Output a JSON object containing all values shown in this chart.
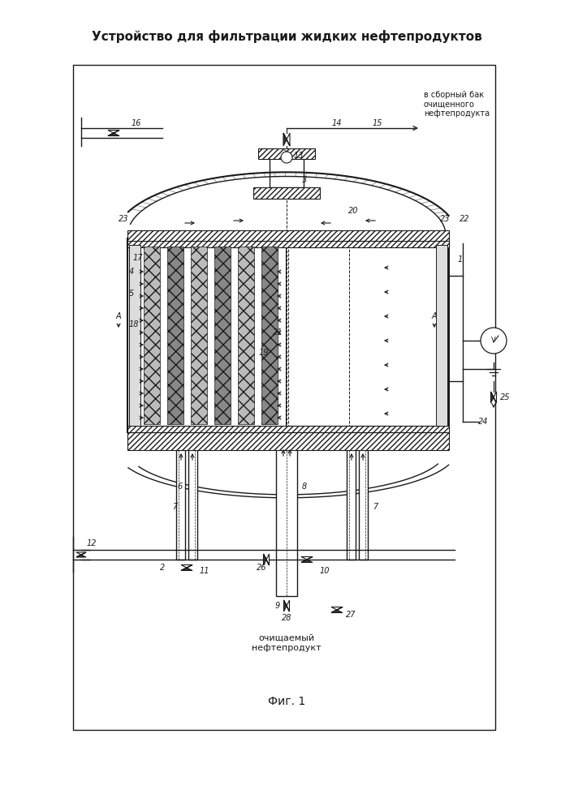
{
  "title": "Устройство для фильтрации жидких нефтепродуктов",
  "subtitle_fig": "Фиг. 1",
  "label_top_right": "в сборный бак\nочищенного\nнефтепродукта",
  "label_bottom": "очищаемый\nнефтепродукт",
  "bg_color": "#ffffff",
  "line_color": "#1a1a1a",
  "title_fontsize": 11,
  "fig_label_fontsize": 10
}
